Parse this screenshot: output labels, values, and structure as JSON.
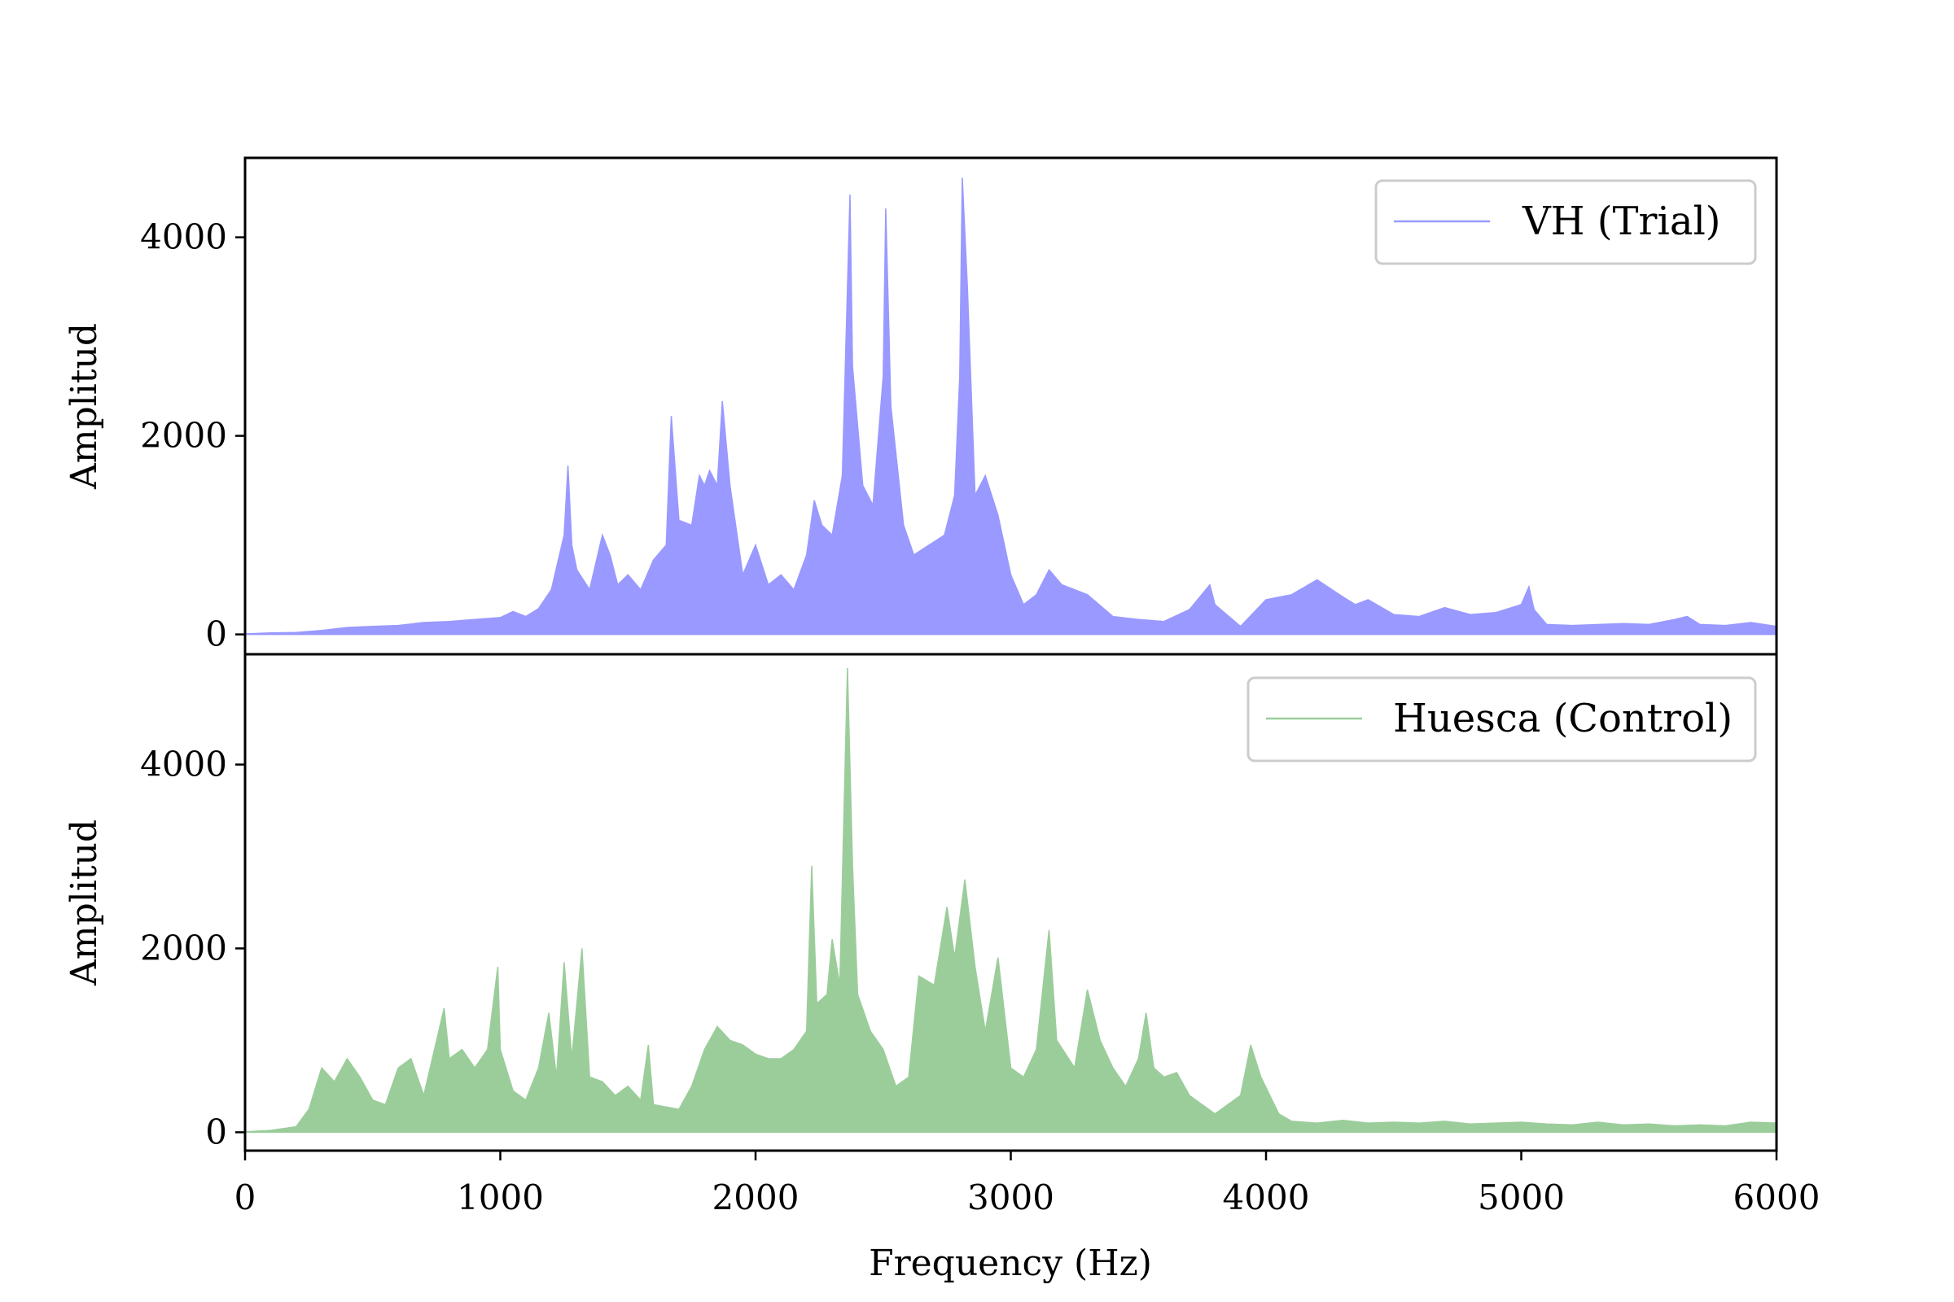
{
  "chart_data": [
    {
      "type": "area",
      "panel": "top",
      "series": [
        {
          "name": "VH (Trial)",
          "color": "#9999ff",
          "points": [
            [
              0,
              5
            ],
            [
              100,
              15
            ],
            [
              200,
              20
            ],
            [
              300,
              40
            ],
            [
              400,
              70
            ],
            [
              500,
              80
            ],
            [
              600,
              90
            ],
            [
              700,
              120
            ],
            [
              800,
              130
            ],
            [
              900,
              150
            ],
            [
              1000,
              170
            ],
            [
              1050,
              230
            ],
            [
              1100,
              180
            ],
            [
              1150,
              260
            ],
            [
              1200,
              450
            ],
            [
              1250,
              1000
            ],
            [
              1265,
              1700
            ],
            [
              1280,
              900
            ],
            [
              1300,
              650
            ],
            [
              1350,
              450
            ],
            [
              1400,
              1000
            ],
            [
              1430,
              800
            ],
            [
              1460,
              500
            ],
            [
              1500,
              600
            ],
            [
              1550,
              450
            ],
            [
              1600,
              750
            ],
            [
              1650,
              900
            ],
            [
              1670,
              2200
            ],
            [
              1700,
              1150
            ],
            [
              1750,
              1100
            ],
            [
              1780,
              1600
            ],
            [
              1800,
              1500
            ],
            [
              1820,
              1650
            ],
            [
              1850,
              1500
            ],
            [
              1870,
              2350
            ],
            [
              1900,
              1500
            ],
            [
              1950,
              600
            ],
            [
              2000,
              900
            ],
            [
              2050,
              500
            ],
            [
              2100,
              600
            ],
            [
              2150,
              450
            ],
            [
              2200,
              800
            ],
            [
              2230,
              1350
            ],
            [
              2260,
              1100
            ],
            [
              2300,
              1000
            ],
            [
              2340,
              1600
            ],
            [
              2370,
              4430
            ],
            [
              2380,
              2700
            ],
            [
              2420,
              1500
            ],
            [
              2460,
              1300
            ],
            [
              2500,
              2600
            ],
            [
              2510,
              4290
            ],
            [
              2530,
              2300
            ],
            [
              2580,
              1100
            ],
            [
              2620,
              800
            ],
            [
              2680,
              900
            ],
            [
              2740,
              1000
            ],
            [
              2780,
              1400
            ],
            [
              2800,
              2600
            ],
            [
              2810,
              4600
            ],
            [
              2830,
              3500
            ],
            [
              2860,
              1400
            ],
            [
              2900,
              1600
            ],
            [
              2950,
              1200
            ],
            [
              3000,
              600
            ],
            [
              3050,
              300
            ],
            [
              3100,
              400
            ],
            [
              3150,
              650
            ],
            [
              3200,
              500
            ],
            [
              3300,
              400
            ],
            [
              3400,
              180
            ],
            [
              3500,
              150
            ],
            [
              3600,
              130
            ],
            [
              3700,
              250
            ],
            [
              3780,
              500
            ],
            [
              3800,
              300
            ],
            [
              3900,
              80
            ],
            [
              4000,
              350
            ],
            [
              4100,
              400
            ],
            [
              4200,
              550
            ],
            [
              4300,
              380
            ],
            [
              4350,
              300
            ],
            [
              4400,
              350
            ],
            [
              4500,
              200
            ],
            [
              4600,
              180
            ],
            [
              4700,
              270
            ],
            [
              4800,
              200
            ],
            [
              4900,
              220
            ],
            [
              5000,
              300
            ],
            [
              5030,
              480
            ],
            [
              5050,
              250
            ],
            [
              5100,
              100
            ],
            [
              5200,
              90
            ],
            [
              5400,
              110
            ],
            [
              5500,
              100
            ],
            [
              5600,
              150
            ],
            [
              5650,
              180
            ],
            [
              5700,
              100
            ],
            [
              5800,
              90
            ],
            [
              5900,
              120
            ],
            [
              6000,
              80
            ]
          ]
        }
      ],
      "xlim": [
        0,
        6000
      ],
      "ylim": [
        -200,
        4800
      ],
      "yticks": [
        0,
        2000,
        4000
      ],
      "ylabel": "Amplitud",
      "legend": "top-right"
    },
    {
      "type": "area",
      "panel": "bottom",
      "series": [
        {
          "name": "Huesca (Control)",
          "color": "#9bcd9b",
          "points": [
            [
              0,
              5
            ],
            [
              100,
              20
            ],
            [
              200,
              60
            ],
            [
              250,
              250
            ],
            [
              300,
              700
            ],
            [
              350,
              550
            ],
            [
              400,
              800
            ],
            [
              450,
              600
            ],
            [
              500,
              350
            ],
            [
              550,
              300
            ],
            [
              600,
              700
            ],
            [
              650,
              800
            ],
            [
              700,
              400
            ],
            [
              780,
              1350
            ],
            [
              800,
              800
            ],
            [
              850,
              900
            ],
            [
              900,
              700
            ],
            [
              950,
              900
            ],
            [
              990,
              1800
            ],
            [
              1000,
              900
            ],
            [
              1050,
              450
            ],
            [
              1100,
              350
            ],
            [
              1150,
              700
            ],
            [
              1190,
              1300
            ],
            [
              1220,
              600
            ],
            [
              1250,
              1850
            ],
            [
              1280,
              800
            ],
            [
              1320,
              2000
            ],
            [
              1350,
              600
            ],
            [
              1400,
              550
            ],
            [
              1450,
              400
            ],
            [
              1500,
              500
            ],
            [
              1550,
              350
            ],
            [
              1580,
              950
            ],
            [
              1600,
              300
            ],
            [
              1700,
              250
            ],
            [
              1750,
              500
            ],
            [
              1800,
              900
            ],
            [
              1850,
              1150
            ],
            [
              1900,
              1000
            ],
            [
              1950,
              950
            ],
            [
              2000,
              850
            ],
            [
              2050,
              800
            ],
            [
              2100,
              800
            ],
            [
              2150,
              900
            ],
            [
              2200,
              1100
            ],
            [
              2220,
              2900
            ],
            [
              2240,
              1400
            ],
            [
              2280,
              1500
            ],
            [
              2300,
              2100
            ],
            [
              2330,
              1600
            ],
            [
              2360,
              5050
            ],
            [
              2380,
              2900
            ],
            [
              2400,
              1500
            ],
            [
              2450,
              1100
            ],
            [
              2500,
              900
            ],
            [
              2550,
              500
            ],
            [
              2600,
              600
            ],
            [
              2640,
              1700
            ],
            [
              2700,
              1600
            ],
            [
              2750,
              2450
            ],
            [
              2780,
              1900
            ],
            [
              2820,
              2750
            ],
            [
              2860,
              1800
            ],
            [
              2900,
              1100
            ],
            [
              2950,
              1900
            ],
            [
              3000,
              700
            ],
            [
              3050,
              600
            ],
            [
              3100,
              900
            ],
            [
              3150,
              2200
            ],
            [
              3180,
              1000
            ],
            [
              3250,
              700
            ],
            [
              3300,
              1550
            ],
            [
              3350,
              1000
            ],
            [
              3400,
              700
            ],
            [
              3450,
              500
            ],
            [
              3500,
              800
            ],
            [
              3530,
              1300
            ],
            [
              3560,
              700
            ],
            [
              3600,
              600
            ],
            [
              3650,
              650
            ],
            [
              3700,
              400
            ],
            [
              3800,
              200
            ],
            [
              3850,
              300
            ],
            [
              3900,
              400
            ],
            [
              3940,
              950
            ],
            [
              3980,
              600
            ],
            [
              4050,
              200
            ],
            [
              4100,
              120
            ],
            [
              4200,
              100
            ],
            [
              4300,
              130
            ],
            [
              4400,
              100
            ],
            [
              4500,
              110
            ],
            [
              4600,
              100
            ],
            [
              4700,
              120
            ],
            [
              4800,
              90
            ],
            [
              4900,
              100
            ],
            [
              5000,
              110
            ],
            [
              5100,
              90
            ],
            [
              5200,
              80
            ],
            [
              5300,
              110
            ],
            [
              5400,
              80
            ],
            [
              5500,
              90
            ],
            [
              5600,
              70
            ],
            [
              5700,
              80
            ],
            [
              5800,
              70
            ],
            [
              5900,
              110
            ],
            [
              6000,
              100
            ]
          ]
        }
      ],
      "xlim": [
        0,
        6000
      ],
      "ylim": [
        -200,
        5200
      ],
      "yticks": [
        0,
        2000,
        4000
      ],
      "xticks": [
        0,
        1000,
        2000,
        3000,
        4000,
        5000,
        6000
      ],
      "xlabel": "Frequency (Hz)",
      "ylabel": "Amplitud",
      "legend": "top-right"
    }
  ]
}
